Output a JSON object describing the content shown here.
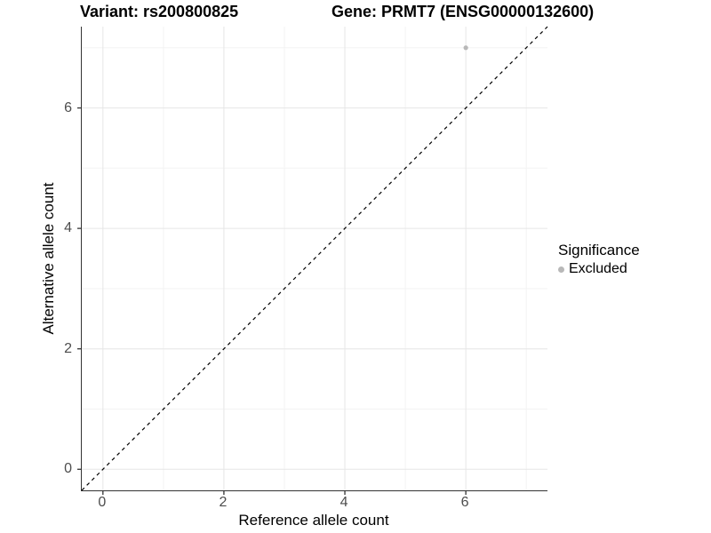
{
  "header": {
    "variant_title": "Variant: rs200800825",
    "gene_title": "Gene: PRMT7 (ENSG00000132600)"
  },
  "legend": {
    "title": "Significance",
    "items": [
      {
        "label": "Excluded",
        "color": "#b8b8b8"
      }
    ],
    "position": "right"
  },
  "colors": {
    "background": "#ffffff",
    "axis_line": "#333333",
    "tick_label": "#4d4d4d",
    "grid_major": "#e6e6e6",
    "grid_minor": "#f3f3f3",
    "point": "#b8b8b8",
    "reference_line": "#000000"
  },
  "chart_data": {
    "type": "scatter",
    "title_left": "Variant: rs200800825",
    "title_right": "Gene: PRMT7 (ENSG00000132600)",
    "xlabel": "Reference allele count",
    "ylabel": "Alternative allele count",
    "xlim": [
      -0.35,
      7.35
    ],
    "ylim": [
      -0.35,
      7.35
    ],
    "x_ticks": [
      0,
      2,
      4,
      6
    ],
    "y_ticks": [
      0,
      2,
      4,
      6
    ],
    "x_minor_ticks": [
      1,
      3,
      5,
      7
    ],
    "y_minor_ticks": [
      1,
      3,
      5,
      7
    ],
    "grid": true,
    "legend_position": "right",
    "series": [
      {
        "name": "Excluded",
        "color": "#b8b8b8",
        "points": [
          {
            "x": 6,
            "y": 7
          }
        ]
      }
    ],
    "reference_line": {
      "style": "dashed",
      "color": "#000000",
      "from": [
        -0.35,
        -0.35
      ],
      "to": [
        7.35,
        7.35
      ],
      "meaning": "y = x identity line"
    }
  }
}
